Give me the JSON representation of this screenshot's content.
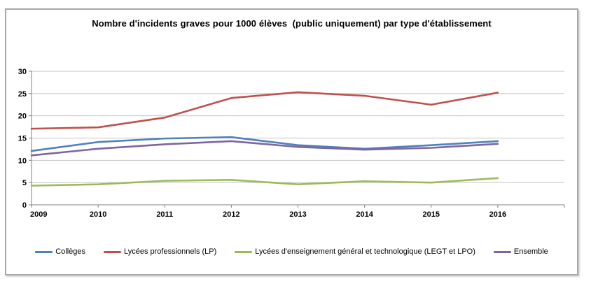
{
  "window": {
    "background": "#ffffff",
    "frame_border_color": "#a6a6a6"
  },
  "title": "Nombre d'incidents graves pour 1000 élèves  (public uniquement) par type d'établissement",
  "chart_data": {
    "type": "line",
    "title": "Nombre d'incidents graves pour 1000 élèves  (public uniquement) par type d'établissement",
    "categories": [
      "2009",
      "2010",
      "2011",
      "2012",
      "2013",
      "2014",
      "2015",
      "2016"
    ],
    "series": [
      {
        "name": "Collèges",
        "color": "#4F81BD",
        "values": [
          12.1,
          14.1,
          14.9,
          15.2,
          13.4,
          12.6,
          13.4,
          14.3
        ]
      },
      {
        "name": "Lycées professionnels (LP)",
        "color": "#C0504D",
        "values": [
          17.1,
          17.4,
          19.6,
          24.0,
          25.3,
          24.5,
          22.5,
          25.2
        ]
      },
      {
        "name": "Lycées d'enseignement général et technologique (LEGT et LPO)",
        "color": "#9BBB59",
        "values": [
          4.3,
          4.6,
          5.4,
          5.6,
          4.6,
          5.3,
          5.0,
          6.0
        ]
      },
      {
        "name": "Ensemble",
        "color": "#8064A2",
        "values": [
          11.1,
          12.6,
          13.6,
          14.3,
          13.0,
          12.4,
          12.8,
          13.7
        ]
      }
    ],
    "xlabel": "",
    "ylabel": "",
    "ylim": [
      0,
      30
    ],
    "yticks": [
      0,
      5,
      10,
      15,
      20,
      25,
      30
    ],
    "grid": true,
    "grid_color": "#c3c3c3",
    "axis_color": "#808080",
    "legend_position": "bottom",
    "extra_right_slots": 1,
    "line_width": 2.6
  }
}
